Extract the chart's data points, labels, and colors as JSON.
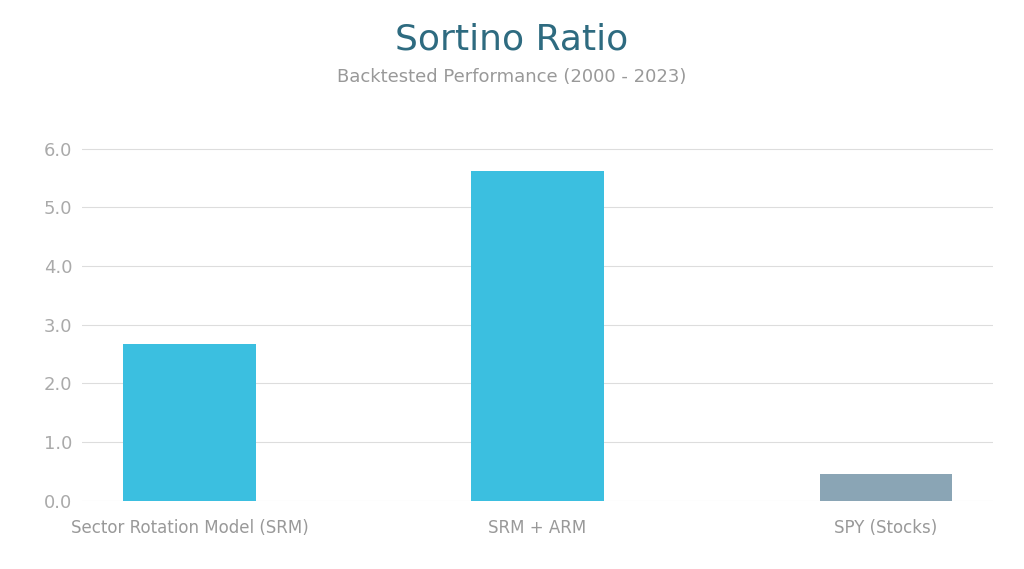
{
  "categories": [
    "Sector Rotation Model (SRM)",
    "SRM + ARM",
    "SPY (Stocks)"
  ],
  "values": [
    2.67,
    5.62,
    0.45
  ],
  "bar_colors": [
    "#3bbfe0",
    "#3bbfe0",
    "#8aa5b5"
  ],
  "title": "Sortino Ratio",
  "subtitle": "Backtested Performance (2000 - 2023)",
  "title_color": "#2e6b80",
  "subtitle_color": "#999999",
  "tick_label_color": "#aaaaaa",
  "xtick_label_color": "#999999",
  "background_color": "#ffffff",
  "grid_color": "#dddddd",
  "ylim": [
    0,
    6.4
  ],
  "yticks": [
    0.0,
    1.0,
    2.0,
    3.0,
    4.0,
    5.0,
    6.0
  ],
  "title_fontsize": 26,
  "subtitle_fontsize": 13,
  "tick_fontsize": 13,
  "xtick_fontsize": 12,
  "bar_width": 0.38
}
